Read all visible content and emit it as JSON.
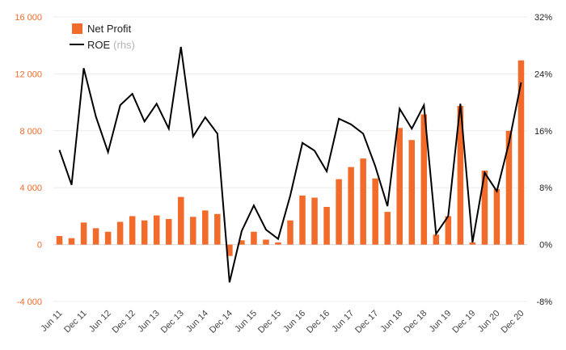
{
  "chart_data": {
    "type": "bar",
    "categories": [
      "Jun 11",
      "Sep 11",
      "Dec 11",
      "Mar 12",
      "Jun 12",
      "Sep 12",
      "Dec 12",
      "Mar 13",
      "Jun 13",
      "Sep 13",
      "Dec 13",
      "Mar 14",
      "Jun 14",
      "Sep 14",
      "Dec 14",
      "Mar 15",
      "Jun 15",
      "Sep 15",
      "Dec 15",
      "Mar 16",
      "Jun 16",
      "Sep 16",
      "Dec 16",
      "Mar 17",
      "Jun 17",
      "Sep 17",
      "Dec 17",
      "Mar 18",
      "Jun 18",
      "Sep 18",
      "Dec 18",
      "Mar 19",
      "Jun 19",
      "Sep 19",
      "Dec 19",
      "Mar 20",
      "Jun 20",
      "Sep 20",
      "Dec 20"
    ],
    "x_tick_labels": [
      "Jun 11",
      "Dec 11",
      "Jun 12",
      "Dec 12",
      "Jun 13",
      "Dec 13",
      "Jun 14",
      "Dec 14",
      "Jun 15",
      "Dec 15",
      "Jun 16",
      "Dec 16",
      "Jun 17",
      "Dec 17",
      "Jun 18",
      "Dec 18",
      "Jun 19",
      "Dec 19",
      "Jun 20",
      "Dec 20"
    ],
    "series": [
      {
        "name": "Net Profit",
        "type": "bar",
        "axis": "left",
        "color": "#f26b2a",
        "values": [
          600,
          450,
          1550,
          1150,
          900,
          1600,
          2000,
          1700,
          2050,
          1800,
          3350,
          1950,
          2400,
          2150,
          -800,
          300,
          900,
          350,
          150,
          1700,
          3450,
          3300,
          2650,
          4600,
          5450,
          6050,
          4650,
          2300,
          8200,
          7350,
          9150,
          700,
          2000,
          9750,
          150,
          5200,
          3900,
          8000,
          12950
        ]
      },
      {
        "name": "ROE",
        "note": "(rhs)",
        "type": "line",
        "axis": "right",
        "color": "#000000",
        "values": [
          13.3,
          8.4,
          24.8,
          18.0,
          13.0,
          19.6,
          21.2,
          17.3,
          19.8,
          16.3,
          27.8,
          15.2,
          17.9,
          15.6,
          -5.3,
          1.9,
          5.5,
          2.1,
          0.8,
          6.9,
          14.3,
          13.2,
          10.3,
          17.7,
          16.9,
          15.6,
          11.0,
          5.4,
          19.1,
          16.3,
          19.6,
          1.5,
          4.0,
          19.8,
          0.3,
          10.1,
          7.5,
          14.3,
          22.8
        ]
      }
    ],
    "left_axis": {
      "min": -4000,
      "max": 16000,
      "step": 4000,
      "tick_labels": [
        "-4 000",
        "0",
        "4 000",
        "8 000",
        "12 000",
        "16 000"
      ]
    },
    "right_axis": {
      "min": -8,
      "max": 32,
      "step": 8,
      "tick_labels": [
        "-8%",
        "0%",
        "8%",
        "16%",
        "24%",
        "32%"
      ]
    },
    "grid": true,
    "legend_position": "top-left",
    "title": "",
    "xlabel": "",
    "ylabel": ""
  }
}
